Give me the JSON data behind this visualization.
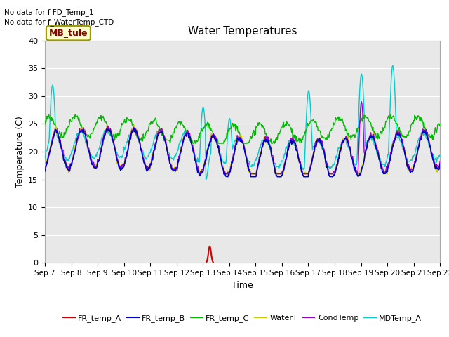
{
  "title": "Water Temperatures",
  "xlabel": "Time",
  "ylabel": "Temperature (C)",
  "note1": "No data for f FD_Temp_1",
  "note2": "No data for f_WaterTemp_CTD",
  "mb_tule_label": "MB_tule",
  "ylim": [
    0,
    40
  ],
  "yticks": [
    0,
    5,
    10,
    15,
    20,
    25,
    30,
    35,
    40
  ],
  "x_labels": [
    "Sep 7",
    "Sep 8",
    "Sep 9",
    "Sep 10",
    "Sep 11",
    "Sep 12",
    "Sep 13",
    "Sep 14",
    "Sep 15",
    "Sep 16",
    "Sep 17",
    "Sep 18",
    "Sep 19",
    "Sep 20",
    "Sep 21",
    "Sep 22"
  ],
  "bg_color": "#e8e8e8",
  "fr_a_color": "#cc0000",
  "fr_b_color": "#0000cc",
  "fr_c_color": "#00bb00",
  "water_t_color": "#cccc00",
  "cond_t_color": "#9900cc",
  "md_color": "#00cccc",
  "figsize": [
    6.4,
    4.8
  ],
  "dpi": 100
}
